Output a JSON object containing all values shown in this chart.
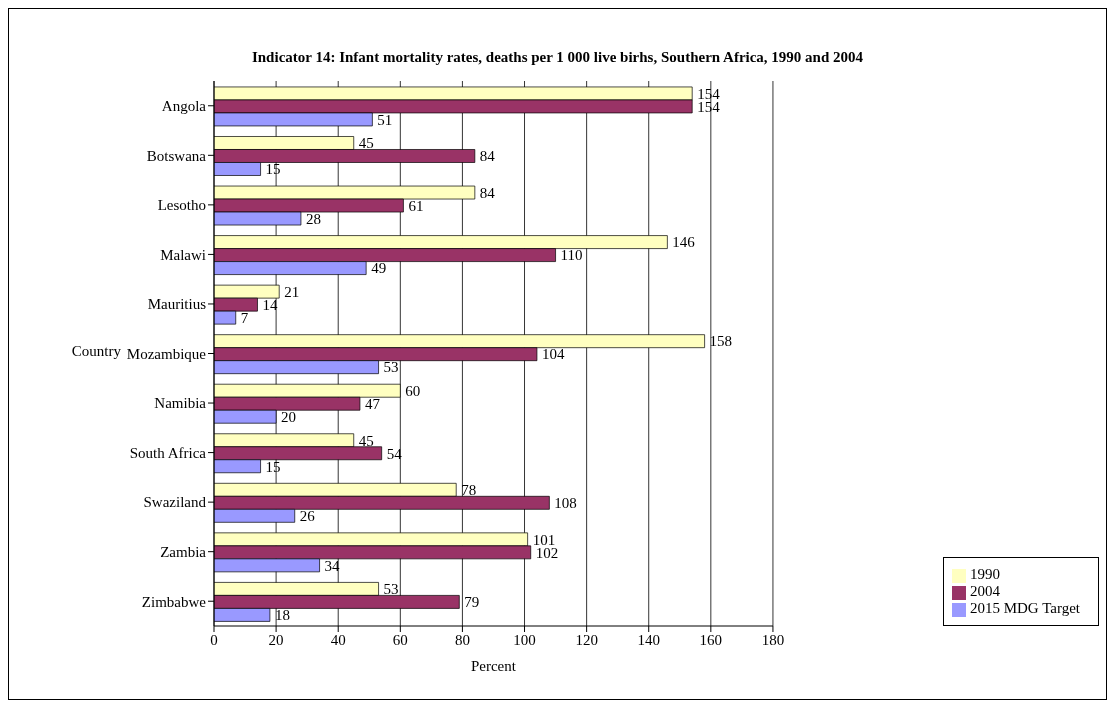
{
  "chart_data": {
    "type": "bar",
    "orientation": "horizontal",
    "title": "Indicator 14: Infant mortality rates,  deaths per 1 000 live birhs, Southern Africa, 1990 and 2004",
    "xlabel": "Percent",
    "ylabel": "Country",
    "categories": [
      "Angola",
      "Botswana",
      "Lesotho",
      "Malawi",
      "Mauritius",
      "Mozambique",
      "Namibia",
      "South Africa",
      "Swaziland",
      "Zambia",
      "Zimbabwe"
    ],
    "series": [
      {
        "name": "1990",
        "color": "#ffffc0",
        "values": [
          154,
          45,
          84,
          146,
          21,
          158,
          60,
          45,
          78,
          101,
          53
        ]
      },
      {
        "name": "2004",
        "color": "#993366",
        "values": [
          154,
          84,
          61,
          110,
          14,
          104,
          47,
          54,
          108,
          102,
          79
        ]
      },
      {
        "name": "2015 MDG Target",
        "color": "#9999ff",
        "values": [
          51,
          15,
          28,
          49,
          7,
          53,
          20,
          15,
          26,
          34,
          18
        ]
      }
    ],
    "xlim": [
      0,
      180
    ],
    "xticks": [
      0,
      20,
      40,
      60,
      80,
      100,
      120,
      140,
      160,
      180
    ],
    "grid": "x",
    "legend": "bottom right",
    "data_labels": true
  }
}
